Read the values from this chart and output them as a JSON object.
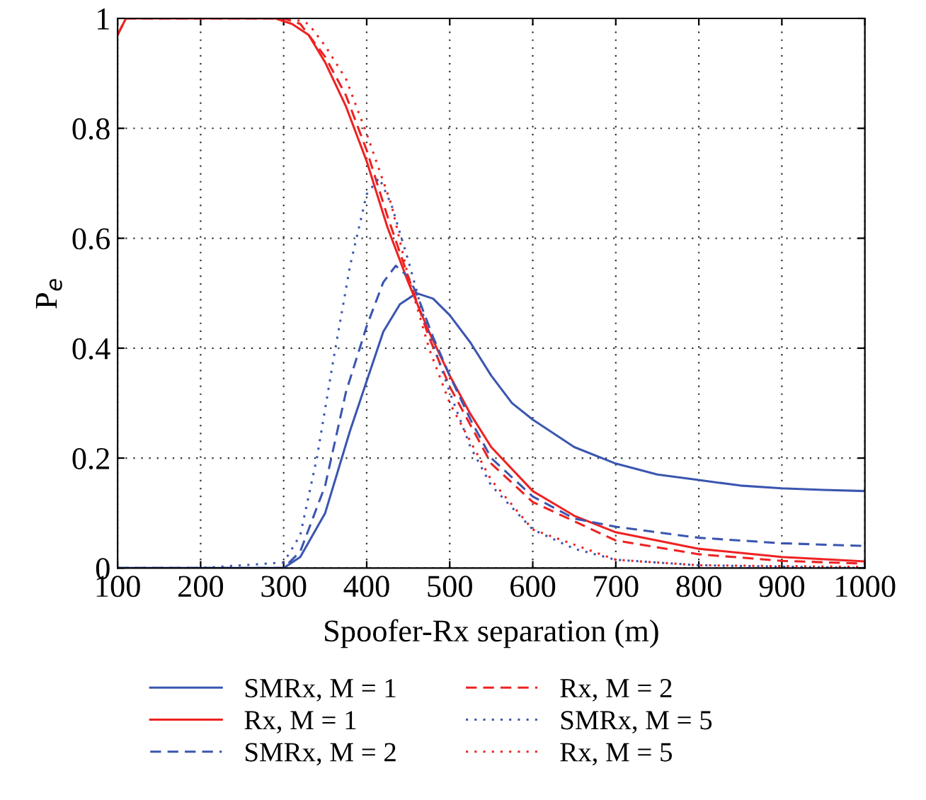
{
  "chart_data": {
    "type": "line",
    "xlabel": "Spoofer-Rx separation (m)",
    "ylabel": "P$_{e}$",
    "xlim": [
      100,
      1000
    ],
    "ylim": [
      0,
      1
    ],
    "xticks": [
      100,
      200,
      300,
      400,
      500,
      600,
      700,
      800,
      900,
      1000
    ],
    "yticks": [
      0,
      0.2,
      0.4,
      0.6,
      0.8,
      1
    ],
    "grid": true,
    "legend": "bottom",
    "marker": "none",
    "series": [
      {
        "name": "SMRx, M = 1",
        "color": "#3a56b0",
        "line_style": "solid",
        "x": [
          100,
          200,
          300,
          320,
          350,
          380,
          400,
          420,
          440,
          460,
          480,
          500,
          525,
          550,
          575,
          600,
          650,
          700,
          750,
          800,
          850,
          900,
          950,
          1000
        ],
        "values": [
          0,
          0,
          0,
          0.02,
          0.1,
          0.25,
          0.34,
          0.43,
          0.48,
          0.5,
          0.49,
          0.46,
          0.41,
          0.35,
          0.3,
          0.27,
          0.22,
          0.19,
          0.17,
          0.16,
          0.15,
          0.145,
          0.142,
          0.14
        ]
      },
      {
        "name": "Rx, M = 1",
        "color": "#ee2222",
        "line_style": "solid",
        "x": [
          100,
          110,
          200,
          290,
          310,
          330,
          350,
          375,
          400,
          425,
          450,
          475,
          500,
          525,
          550,
          600,
          650,
          700,
          800,
          900,
          1000
        ],
        "values": [
          0.97,
          1,
          1,
          1,
          0.99,
          0.97,
          0.92,
          0.84,
          0.74,
          0.62,
          0.52,
          0.43,
          0.35,
          0.28,
          0.22,
          0.14,
          0.095,
          0.065,
          0.035,
          0.02,
          0.012
        ]
      },
      {
        "name": "SMRx, M = 2",
        "color": "#3a56b0",
        "line_style": "dashed",
        "x": [
          100,
          200,
          300,
          320,
          350,
          375,
          400,
          420,
          435,
          450,
          460,
          480,
          500,
          525,
          550,
          600,
          650,
          700,
          800,
          900,
          1000
        ],
        "values": [
          0,
          0,
          0,
          0.03,
          0.15,
          0.32,
          0.44,
          0.52,
          0.55,
          0.53,
          0.5,
          0.42,
          0.35,
          0.27,
          0.2,
          0.13,
          0.09,
          0.075,
          0.055,
          0.045,
          0.04
        ]
      },
      {
        "name": "Rx, M = 2",
        "color": "#ee2222",
        "line_style": "dashed",
        "x": [
          100,
          110,
          200,
          300,
          320,
          350,
          375,
          400,
          425,
          450,
          475,
          500,
          550,
          600,
          700,
          800,
          900,
          1000
        ],
        "values": [
          0.97,
          1,
          1,
          1,
          0.99,
          0.93,
          0.86,
          0.76,
          0.64,
          0.53,
          0.42,
          0.33,
          0.19,
          0.12,
          0.05,
          0.025,
          0.013,
          0.008
        ]
      },
      {
        "name": "SMRx, M = 5",
        "color": "#3a56b0",
        "line_style": "dotted",
        "x": [
          100,
          200,
          300,
          320,
          340,
          360,
          380,
          400,
          415,
          430,
          450,
          470,
          500,
          525,
          550,
          600,
          650,
          700,
          800,
          1000
        ],
        "values": [
          0,
          0,
          0.01,
          0.06,
          0.2,
          0.38,
          0.55,
          0.68,
          0.71,
          0.66,
          0.56,
          0.45,
          0.32,
          0.22,
          0.15,
          0.07,
          0.035,
          0.015,
          0.005,
          0
        ]
      },
      {
        "name": "Rx, M = 5",
        "color": "#ee2222",
        "line_style": "dotted",
        "x": [
          100,
          110,
          200,
          310,
          330,
          350,
          375,
          400,
          430,
          450,
          475,
          500,
          550,
          600,
          700,
          800,
          1000
        ],
        "values": [
          0.97,
          1,
          1,
          1,
          0.99,
          0.95,
          0.89,
          0.79,
          0.66,
          0.53,
          0.4,
          0.3,
          0.16,
          0.07,
          0.015,
          0.005,
          0.002
        ]
      }
    ]
  }
}
